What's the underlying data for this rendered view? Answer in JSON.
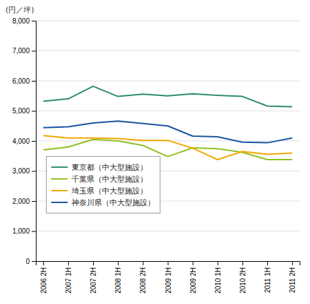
{
  "chart_data": {
    "type": "line",
    "y_label": "(円／坪)",
    "categories": [
      "2006 2H",
      "2007 1H",
      "2007 2H",
      "2008 1H",
      "2008 2H",
      "2009 1H",
      "2009 2H",
      "2010 1H",
      "2010 2H",
      "2011 1H",
      "2011 2H"
    ],
    "series": [
      {
        "name": "東京都（中大型施設）",
        "color": "#2d8a72",
        "values": [
          5320,
          5400,
          5820,
          5480,
          5560,
          5500,
          5570,
          5520,
          5480,
          5160,
          5140
        ]
      },
      {
        "name": "千葉県（中大型施設）",
        "color": "#90c020",
        "values": [
          3700,
          3800,
          4050,
          4000,
          3850,
          3480,
          3770,
          3740,
          3620,
          3380,
          3380
        ]
      },
      {
        "name": "埼玉県（中大型施設）",
        "color": "#f0a800",
        "values": [
          4180,
          4100,
          4100,
          4080,
          4020,
          4020,
          3760,
          3380,
          3650,
          3560,
          3600
        ]
      },
      {
        "name": "神奈川県（中大型施設）",
        "color": "#1a52a0",
        "values": [
          4440,
          4470,
          4600,
          4660,
          4580,
          4500,
          4160,
          4140,
          3960,
          3940,
          4100
        ]
      }
    ],
    "ylim": [
      0,
      8000
    ],
    "yticks": [
      0,
      {
        "value": 1000,
        "label": "1,000"
      },
      {
        "value": 2000,
        "label": "2,000"
      },
      {
        "value": 3000,
        "label": "3,000"
      },
      {
        "value": 4000,
        "label": "4,000"
      },
      {
        "value": 5000,
        "label": "5,000"
      },
      {
        "value": 6000,
        "label": "6,000"
      },
      {
        "value": 7000,
        "label": "7,000"
      },
      {
        "value": 8000,
        "label": "8,000"
      }
    ],
    "grid": true,
    "legend": "lower left"
  }
}
